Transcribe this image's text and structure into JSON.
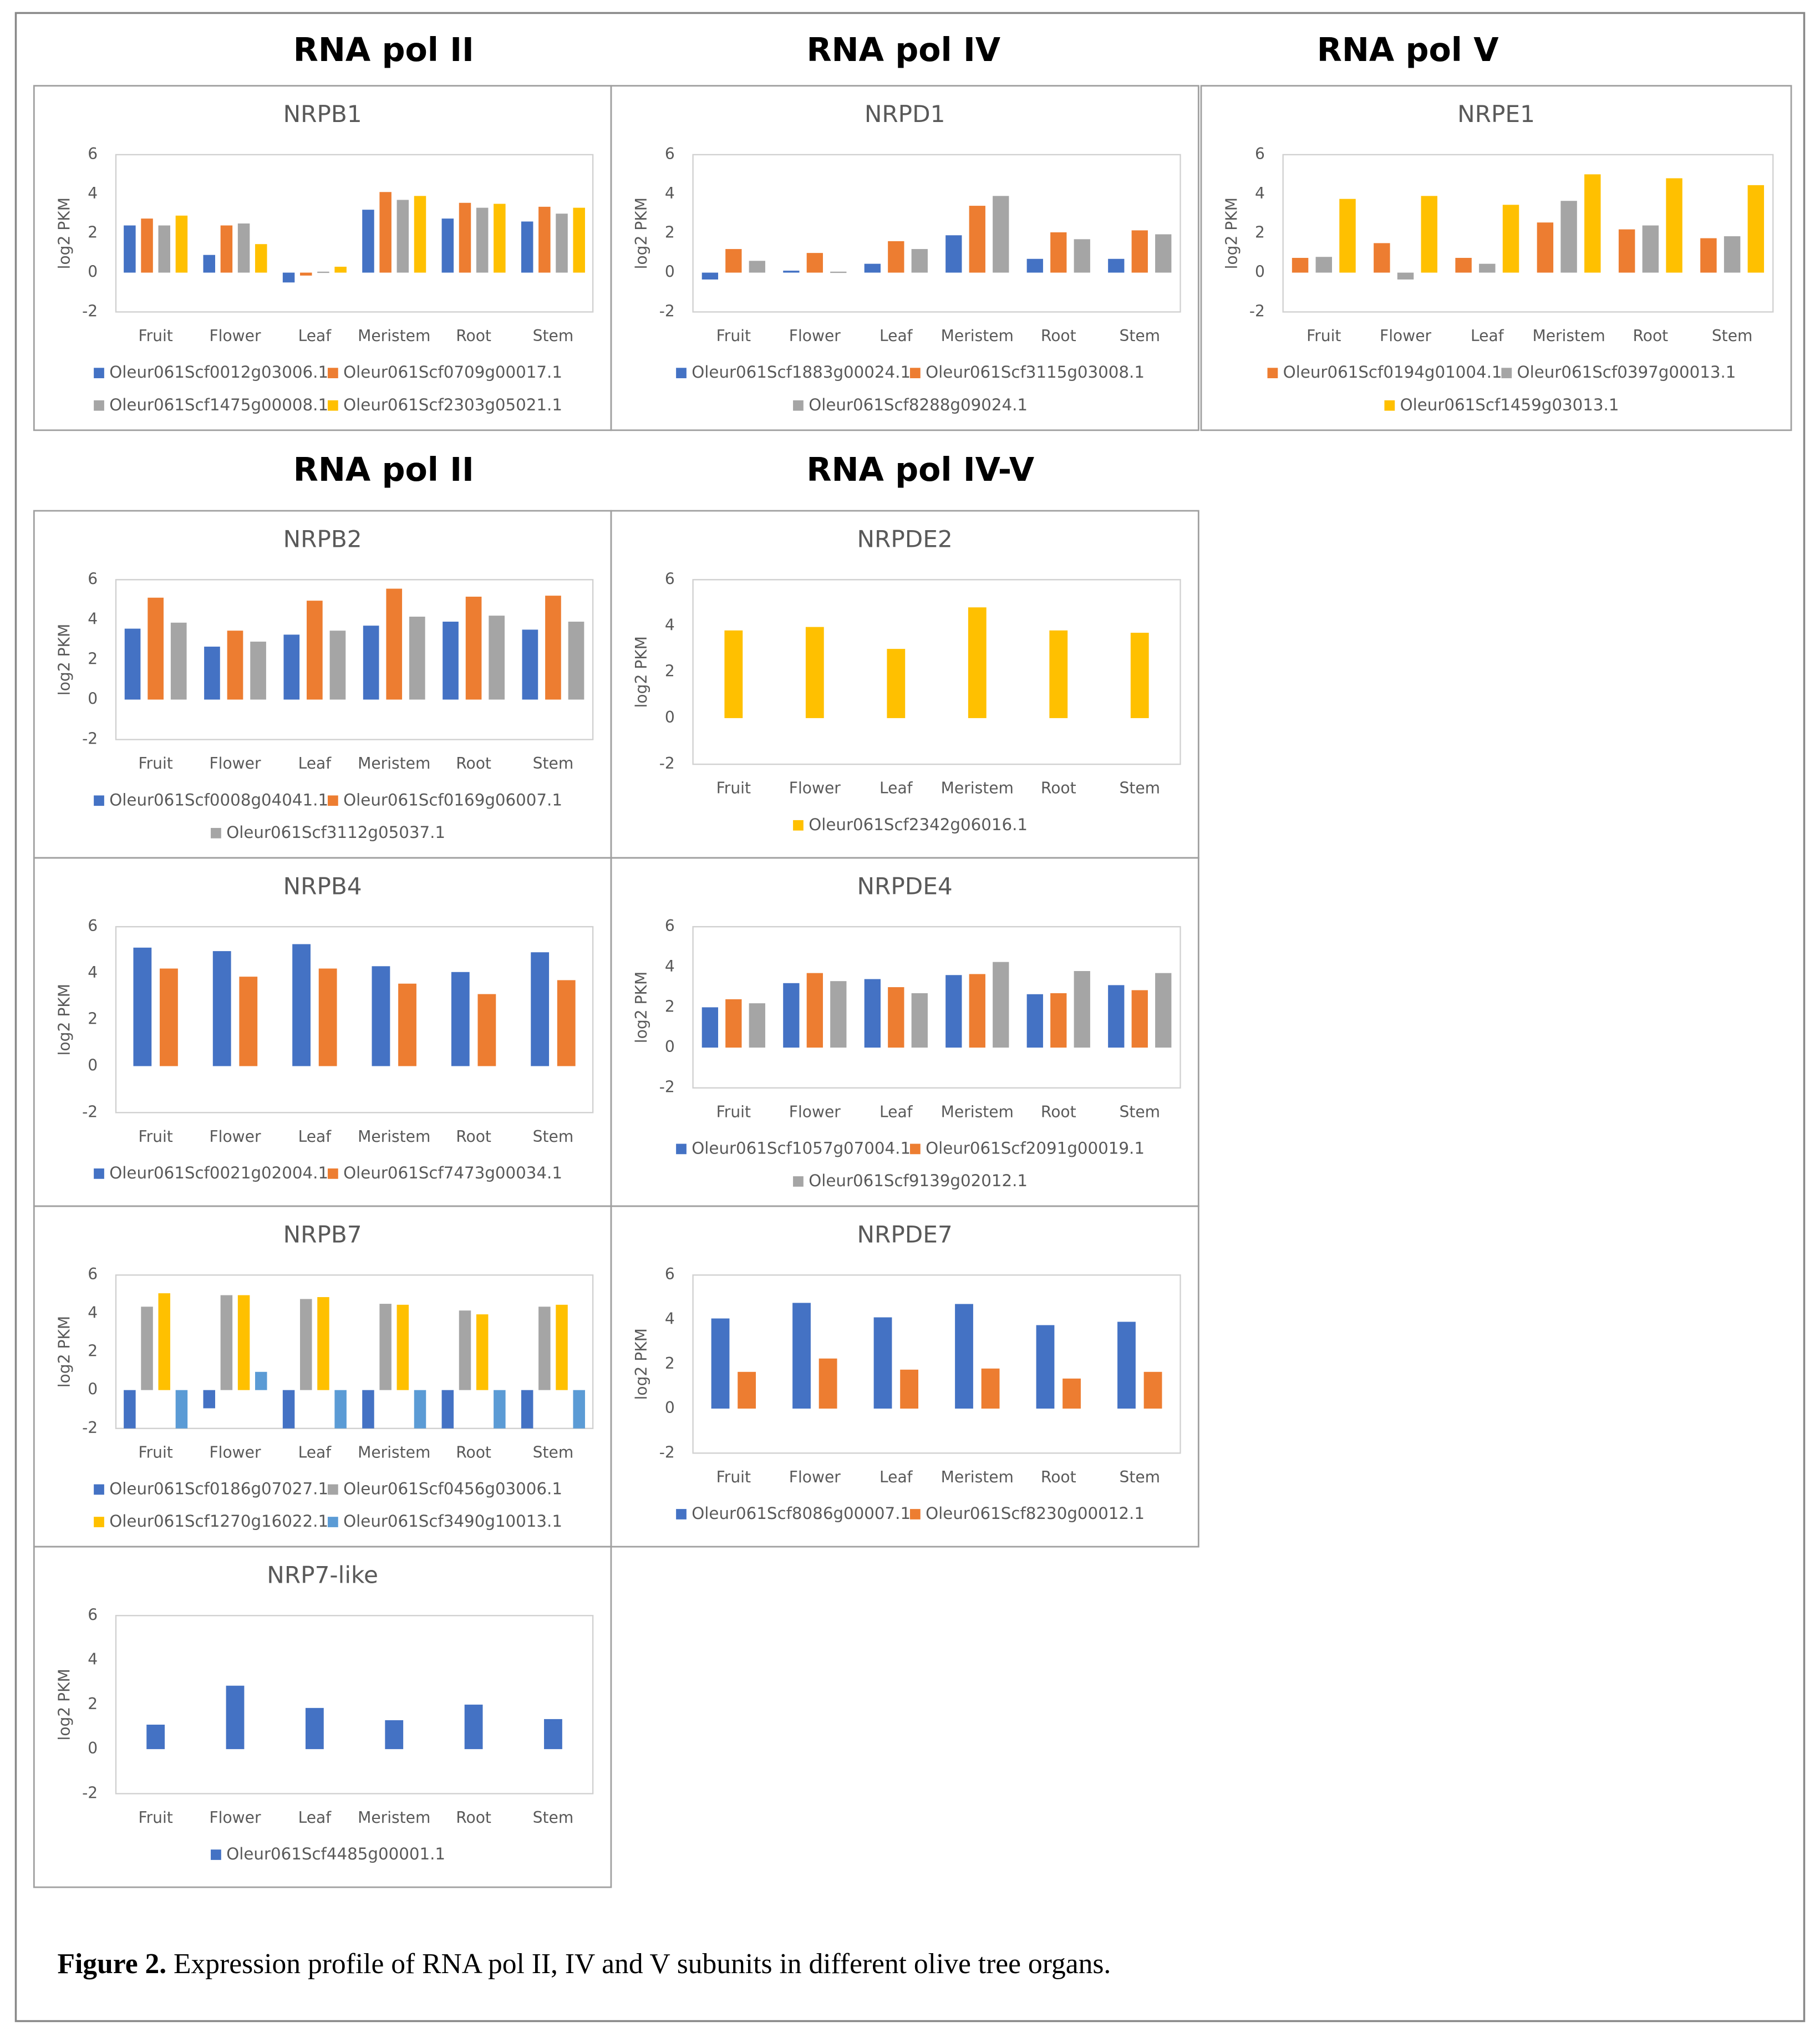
{
  "headers": [
    "RNA pol II",
    "RNA pol IV",
    "RNA pol V",
    "RNA pol II",
    "RNA pol IV-V"
  ],
  "caption": {
    "label": "Figure 2.",
    "text": "Expression profile of RNA pol II, IV and V subunits in different olive tree organs."
  },
  "chart_data": [
    {
      "type": "bar",
      "title": "NRPB1",
      "ylabel": "log2 PKM",
      "categories": [
        "Fruit",
        "Flower",
        "Leaf",
        "Meristem",
        "Root",
        "Stem"
      ],
      "ylim": [
        -2,
        6
      ],
      "yticks": [
        -2,
        0,
        2,
        4,
        6
      ],
      "series": [
        {
          "name": "Oleur061Scf0012g03006.1",
          "color": "#4472c4",
          "values": [
            2.4,
            0.9,
            -0.5,
            3.2,
            2.75,
            2.6
          ]
        },
        {
          "name": "Oleur061Scf0709g00017.1",
          "color": "#ed7d31",
          "values": [
            2.75,
            2.4,
            -0.15,
            4.1,
            3.55,
            3.35
          ]
        },
        {
          "name": "Oleur061Scf1475g00008.1",
          "color": "#a5a5a5",
          "values": [
            2.4,
            2.5,
            0.05,
            3.7,
            3.3,
            3.0
          ]
        },
        {
          "name": "Oleur061Scf2303g05021.1",
          "color": "#ffc000",
          "values": [
            2.9,
            1.45,
            0.3,
            3.9,
            3.5,
            3.3
          ]
        }
      ]
    },
    {
      "type": "bar",
      "title": "NRPD1",
      "ylabel": "log2 PKM",
      "categories": [
        "Fruit",
        "Flower",
        "Leaf",
        "Meristem",
        "Root",
        "Stem"
      ],
      "ylim": [
        -2,
        6
      ],
      "yticks": [
        -2,
        0,
        2,
        4,
        6
      ],
      "series": [
        {
          "name": "Oleur061Scf1883g00024.1",
          "color": "#4472c4",
          "values": [
            -0.35,
            0.1,
            0.45,
            1.9,
            0.7,
            0.7
          ]
        },
        {
          "name": "Oleur061Scf3115g03008.1",
          "color": "#ed7d31",
          "values": [
            1.2,
            1.0,
            1.6,
            3.4,
            2.05,
            2.15
          ]
        },
        {
          "name": "Oleur061Scf8288g09024.1",
          "color": "#a5a5a5",
          "values": [
            0.6,
            0.05,
            1.2,
            3.9,
            1.7,
            1.95
          ]
        }
      ]
    },
    {
      "type": "bar",
      "title": "NRPE1",
      "ylabel": "log2 PKM",
      "categories": [
        "Fruit",
        "Flower",
        "Leaf",
        "Meristem",
        "Root",
        "Stem"
      ],
      "ylim": [
        -2,
        6
      ],
      "yticks": [
        -2,
        0,
        2,
        4,
        6
      ],
      "series": [
        {
          "name": "Oleur061Scf0194g01004.1",
          "color": "#ed7d31",
          "values": [
            0.75,
            1.5,
            0.75,
            2.55,
            2.2,
            1.75
          ]
        },
        {
          "name": "Oleur061Scf0397g00013.1",
          "color": "#a5a5a5",
          "values": [
            0.8,
            -0.35,
            0.45,
            3.65,
            2.4,
            1.85
          ]
        },
        {
          "name": "Oleur061Scf1459g03013.1",
          "color": "#ffc000",
          "values": [
            3.75,
            3.9,
            3.45,
            5.0,
            4.8,
            4.45
          ]
        }
      ]
    },
    {
      "type": "bar",
      "title": "NRPB2",
      "ylabel": "log2 PKM",
      "categories": [
        "Fruit",
        "Flower",
        "Leaf",
        "Meristem",
        "Root",
        "Stem"
      ],
      "ylim": [
        -2,
        6
      ],
      "yticks": [
        -2,
        0,
        2,
        4,
        6
      ],
      "series": [
        {
          "name": "Oleur061Scf0008g04041.1",
          "color": "#4472c4",
          "values": [
            3.55,
            2.65,
            3.25,
            3.7,
            3.9,
            3.5
          ]
        },
        {
          "name": "Oleur061Scf0169g06007.1",
          "color": "#ed7d31",
          "values": [
            5.1,
            3.45,
            4.95,
            5.55,
            5.15,
            5.2
          ]
        },
        {
          "name": "Oleur061Scf3112g05037.1",
          "color": "#a5a5a5",
          "values": [
            3.85,
            2.9,
            3.45,
            4.15,
            4.2,
            3.9
          ]
        }
      ]
    },
    {
      "type": "bar",
      "title": "NRPDE2",
      "ylabel": "log2 PKM",
      "categories": [
        "Fruit",
        "Flower",
        "Leaf",
        "Meristem",
        "Root",
        "Stem"
      ],
      "ylim": [
        -2,
        6
      ],
      "yticks": [
        -2,
        0,
        2,
        4,
        6
      ],
      "series": [
        {
          "name": "Oleur061Scf2342g06016.1",
          "color": "#ffc000",
          "values": [
            3.8,
            3.95,
            3.0,
            4.8,
            3.8,
            3.7
          ]
        }
      ]
    },
    {
      "type": "bar",
      "title": "NRPB4",
      "ylabel": "log2 PKM",
      "categories": [
        "Fruit",
        "Flower",
        "Leaf",
        "Meristem",
        "Root",
        "Stem"
      ],
      "ylim": [
        -2,
        6
      ],
      "yticks": [
        -2,
        0,
        2,
        4,
        6
      ],
      "series": [
        {
          "name": "Oleur061Scf0021g02004.1",
          "color": "#4472c4",
          "values": [
            5.1,
            4.95,
            5.25,
            4.3,
            4.05,
            4.9
          ]
        },
        {
          "name": "Oleur061Scf7473g00034.1",
          "color": "#ed7d31",
          "values": [
            4.2,
            3.85,
            4.2,
            3.55,
            3.1,
            3.7
          ]
        }
      ]
    },
    {
      "type": "bar",
      "title": "NRPDE4",
      "ylabel": "log2 PKM",
      "categories": [
        "Fruit",
        "Flower",
        "Leaf",
        "Meristem",
        "Root",
        "Stem"
      ],
      "ylim": [
        -2,
        6
      ],
      "yticks": [
        -2,
        0,
        2,
        4,
        6
      ],
      "series": [
        {
          "name": "Oleur061Scf1057g07004.1",
          "color": "#4472c4",
          "values": [
            2.0,
            3.2,
            3.4,
            3.6,
            2.65,
            3.1
          ]
        },
        {
          "name": "Oleur061Scf2091g00019.1",
          "color": "#ed7d31",
          "values": [
            2.4,
            3.7,
            3.0,
            3.65,
            2.7,
            2.85
          ]
        },
        {
          "name": "Oleur061Scf9139g02012.1",
          "color": "#a5a5a5",
          "values": [
            2.2,
            3.3,
            2.7,
            4.25,
            3.8,
            3.7
          ]
        }
      ]
    },
    {
      "type": "bar",
      "title": "NRPB7",
      "ylabel": "log2 PKM",
      "categories": [
        "Fruit",
        "Flower",
        "Leaf",
        "Meristem",
        "Root",
        "Stem"
      ],
      "ylim": [
        -2,
        6
      ],
      "yticks": [
        -2,
        0,
        2,
        4,
        6
      ],
      "series": [
        {
          "name": "Oleur061Scf0186g07027.1",
          "color": "#4472c4",
          "values": [
            -2,
            -0.95,
            -2,
            -2,
            -2,
            -2
          ]
        },
        {
          "name": "Oleur061Scf0456g03006.1",
          "color": "#a5a5a5",
          "values": [
            4.35,
            4.95,
            4.75,
            4.5,
            4.15,
            4.35
          ]
        },
        {
          "name": "Oleur061Scf1270g16022.1",
          "color": "#ffc000",
          "values": [
            5.05,
            4.95,
            4.85,
            4.45,
            3.95,
            4.45
          ]
        },
        {
          "name": "Oleur061Scf3490g10013.1",
          "color": "#5b9bd5",
          "values": [
            -2,
            0.95,
            -2,
            -2,
            -2,
            -2
          ]
        }
      ]
    },
    {
      "type": "bar",
      "title": "NRPDE7",
      "ylabel": "log2 PKM",
      "categories": [
        "Fruit",
        "Flower",
        "Leaf",
        "Meristem",
        "Root",
        "Stem"
      ],
      "ylim": [
        -2,
        6
      ],
      "yticks": [
        -2,
        0,
        2,
        4,
        6
      ],
      "series": [
        {
          "name": "Oleur061Scf8086g00007.1",
          "color": "#4472c4",
          "values": [
            4.05,
            4.75,
            4.1,
            4.7,
            3.75,
            3.9
          ]
        },
        {
          "name": "Oleur061Scf8230g00012.1",
          "color": "#ed7d31",
          "values": [
            1.65,
            2.25,
            1.75,
            1.8,
            1.35,
            1.65
          ]
        }
      ]
    },
    {
      "type": "bar",
      "title": "NRP7-like",
      "ylabel": "log2 PKM",
      "categories": [
        "Fruit",
        "Flower",
        "Leaf",
        "Meristem",
        "Root",
        "Stem"
      ],
      "ylim": [
        -2,
        6
      ],
      "yticks": [
        -2,
        0,
        2,
        4,
        6
      ],
      "series": [
        {
          "name": "Oleur061Scf4485g00001.1",
          "color": "#4472c4",
          "values": [
            1.1,
            2.85,
            1.85,
            1.3,
            2.0,
            1.35
          ]
        }
      ]
    }
  ]
}
